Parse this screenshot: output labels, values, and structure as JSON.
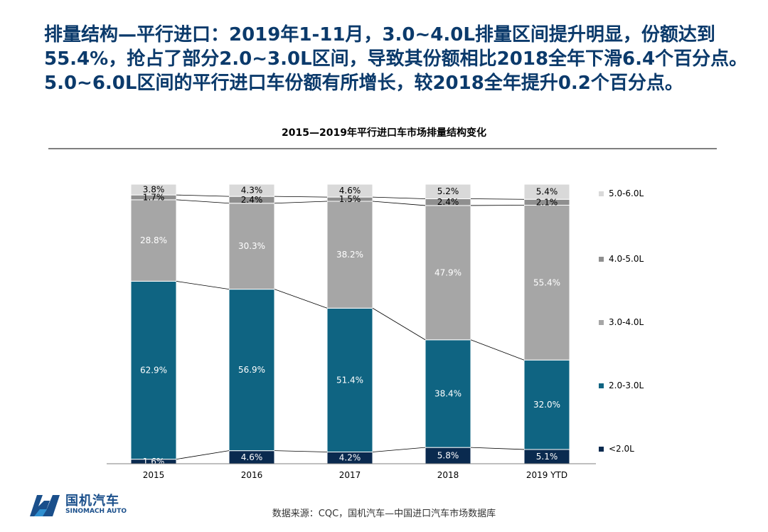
{
  "headline": {
    "line1": "排量结构—平行进口：2019年1-11月，3.0~4.0L排量区间提升明显，份额达到",
    "line2": "55.4%，抢占了部分2.0~3.0L区间，导致其份额相比2018全年下滑6.4个百分点。",
    "line3": "5.0~6.0L区间的平行进口车份额有所增长，较2018全年提升0.2个百分点。"
  },
  "chart_data": {
    "type": "bar",
    "stacked": true,
    "title": "2015—2019年平行进口车市场排量结构变化",
    "categories": [
      "2015",
      "2016",
      "2017",
      "2018",
      "2019 YTD"
    ],
    "series": [
      {
        "name": "<2.0L",
        "values": [
          1.6,
          4.6,
          4.2,
          5.8,
          5.1
        ],
        "labels": [
          "1.6%",
          "4.6%",
          "4.2%",
          "5.8%",
          "5.1%"
        ],
        "color": "#0a2a4f"
      },
      {
        "name": "2.0-3.0L",
        "values": [
          62.9,
          56.9,
          51.4,
          38.4,
          32.0
        ],
        "labels": [
          "62.9%",
          "56.9%",
          "51.4%",
          "38.4%",
          "32.0%"
        ],
        "color": "#0f6482"
      },
      {
        "name": "3.0-4.0L",
        "values": [
          28.8,
          30.3,
          38.2,
          47.9,
          55.4
        ],
        "labels": [
          "28.8%",
          "30.3%",
          "38.2%",
          "47.9%",
          "55.4%"
        ],
        "color": "#a6a6a6"
      },
      {
        "name": "4.0-5.0L",
        "values": [
          1.7,
          2.4,
          1.5,
          2.4,
          2.1
        ],
        "labels": [
          "1.7%",
          "2.4%",
          "1.5%",
          "2.4%",
          "2.1%"
        ],
        "color": "#8f8f8f"
      },
      {
        "name": "5.0-6.0L",
        "values": [
          3.8,
          4.3,
          4.6,
          5.2,
          5.4
        ],
        "labels": [
          "3.8%",
          "4.3%",
          "4.6%",
          "5.2%",
          "5.4%"
        ],
        "color": "#d9d9d9"
      }
    ],
    "ylim": [
      0,
      100
    ],
    "legend_position": "right",
    "legend_order": [
      "5.0-6.0L",
      "4.0-5.0L",
      "3.0-4.0L",
      "2.0-3.0L",
      "<2.0L"
    ],
    "series_connectors": true,
    "grid": false
  },
  "source": "数据来源：CQC，国机汽车—中国进口汽车市场数据库",
  "logo": {
    "name": "国机汽车",
    "sub": "SINOMACH AUTO",
    "color": "#1a4f8b"
  }
}
